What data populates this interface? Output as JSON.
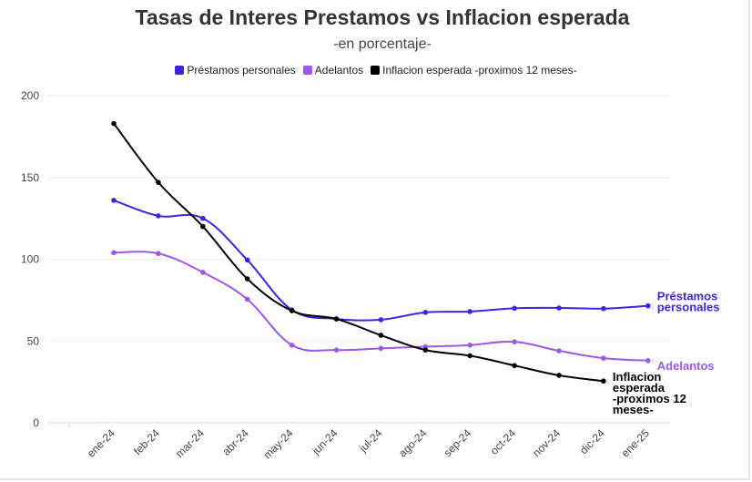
{
  "chart_data": {
    "type": "line",
    "title": "Tasas de Interes Prestamos vs Inflacion esperada",
    "subtitle": "-en porcentaje-",
    "xlabel": "",
    "ylabel": "",
    "ylim": [
      0,
      200
    ],
    "yticks": [
      0,
      50,
      100,
      150,
      200
    ],
    "categories": [
      "ene-24",
      "feb-24",
      "mar-24",
      "abr-24",
      "may-24",
      "jun-24",
      "jul-24",
      "ago-24",
      "sep-24",
      "oct-24",
      "nov-24",
      "dic-24",
      "ene-25"
    ],
    "legend_position": "top",
    "grid": true,
    "series": [
      {
        "name": "Préstamos personales",
        "end_label": [
          "Préstamos",
          "personales"
        ],
        "color": "#4422dd",
        "values": [
          136,
          126.5,
          125,
          99.5,
          69,
          63.5,
          63,
          67.5,
          68,
          70,
          70.2,
          69.8,
          71.5
        ]
      },
      {
        "name": "Adelantos",
        "end_label": [
          "Adelantos"
        ],
        "color": "#9b59e6",
        "values": [
          104,
          103.5,
          92,
          75.5,
          47.5,
          44.5,
          45.5,
          46.5,
          47.5,
          49.5,
          44,
          39.5,
          38
        ]
      },
      {
        "name": "Inflacion esperada -proximos 12 meses-",
        "end_label": [
          "Inflacion",
          "esperada",
          "-proximos 12",
          "meses-"
        ],
        "color": "#000000",
        "values": [
          183,
          147,
          120,
          88,
          68.5,
          63.5,
          53.5,
          44.5,
          41,
          35,
          29,
          25.5,
          null
        ]
      }
    ]
  }
}
